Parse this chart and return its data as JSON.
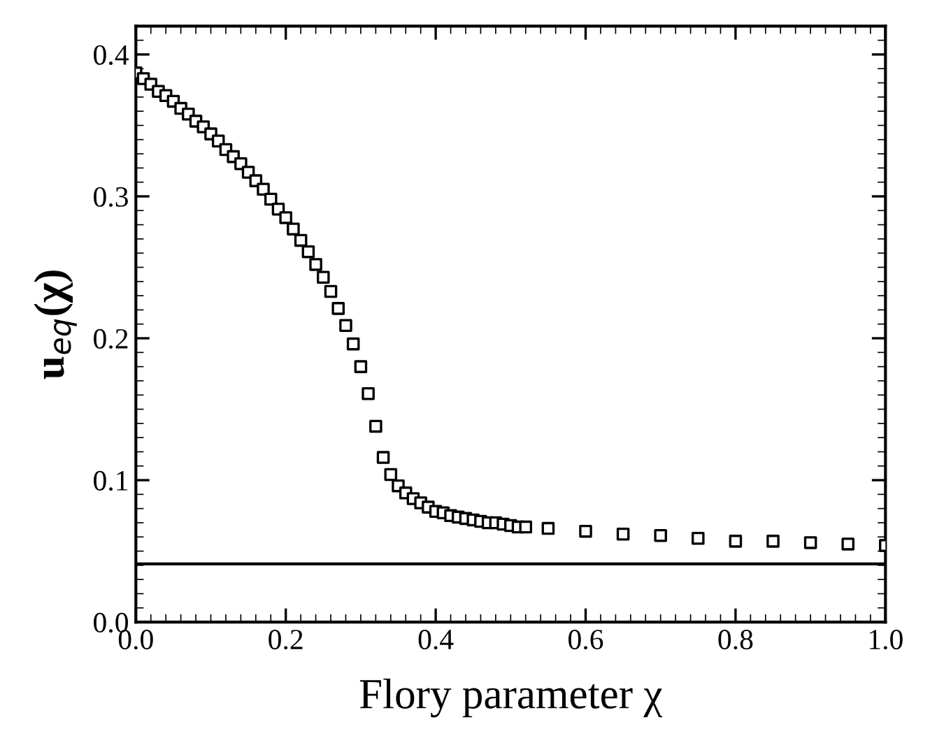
{
  "chart_data": {
    "type": "scatter",
    "xlabel": "Flory parameter χ",
    "ylabel": "u$_{eq}$(χ)",
    "x": [
      0.0,
      0.01,
      0.02,
      0.03,
      0.04,
      0.05,
      0.06,
      0.07,
      0.08,
      0.09,
      0.1,
      0.11,
      0.12,
      0.13,
      0.14,
      0.15,
      0.16,
      0.17,
      0.18,
      0.19,
      0.2,
      0.21,
      0.22,
      0.23,
      0.24,
      0.25,
      0.26,
      0.27,
      0.28,
      0.29,
      0.3,
      0.31,
      0.32,
      0.33,
      0.34,
      0.35,
      0.36,
      0.37,
      0.38,
      0.39,
      0.4,
      0.41,
      0.42,
      0.43,
      0.44,
      0.45,
      0.46,
      0.47,
      0.48,
      0.49,
      0.5,
      0.51,
      0.52,
      0.55,
      0.6,
      0.65,
      0.7,
      0.75,
      0.8,
      0.85,
      0.9,
      0.95,
      1.0
    ],
    "series": [
      {
        "color": "#000000",
        "marker": "square",
        "values": [
          0.387,
          0.383,
          0.379,
          0.374,
          0.371,
          0.367,
          0.362,
          0.358,
          0.353,
          0.349,
          0.344,
          0.339,
          0.333,
          0.328,
          0.323,
          0.317,
          0.311,
          0.305,
          0.298,
          0.291,
          0.285,
          0.277,
          0.269,
          0.261,
          0.252,
          0.243,
          0.233,
          0.221,
          0.209,
          0.196,
          0.18,
          0.161,
          0.138,
          0.116,
          0.104,
          0.096,
          0.091,
          0.087,
          0.084,
          0.081,
          0.078,
          0.077,
          0.075,
          0.074,
          0.073,
          0.072,
          0.071,
          0.07,
          0.07,
          0.069,
          0.068,
          0.067,
          0.067,
          0.066,
          0.064,
          0.062,
          0.061,
          0.059,
          0.057,
          0.057,
          0.056,
          0.055,
          0.054
        ]
      }
    ],
    "ref_lines": [
      {
        "axis": "y",
        "value": 0.041,
        "color": "#000000",
        "line_style": "solid"
      }
    ],
    "xlim": [
      0,
      1
    ],
    "xticks": [
      {
        "value": 0,
        "label": "0.0"
      },
      0.2,
      0.4,
      0.6,
      0.8,
      {
        "value": 1,
        "label": "1.0"
      }
    ],
    "ylim": [
      0,
      0.42
    ],
    "yticks": [
      {
        "value": 0,
        "label": "0.0"
      },
      0.1,
      0.2,
      0.3,
      0.4
    ],
    "grid": false,
    "legend": false
  }
}
